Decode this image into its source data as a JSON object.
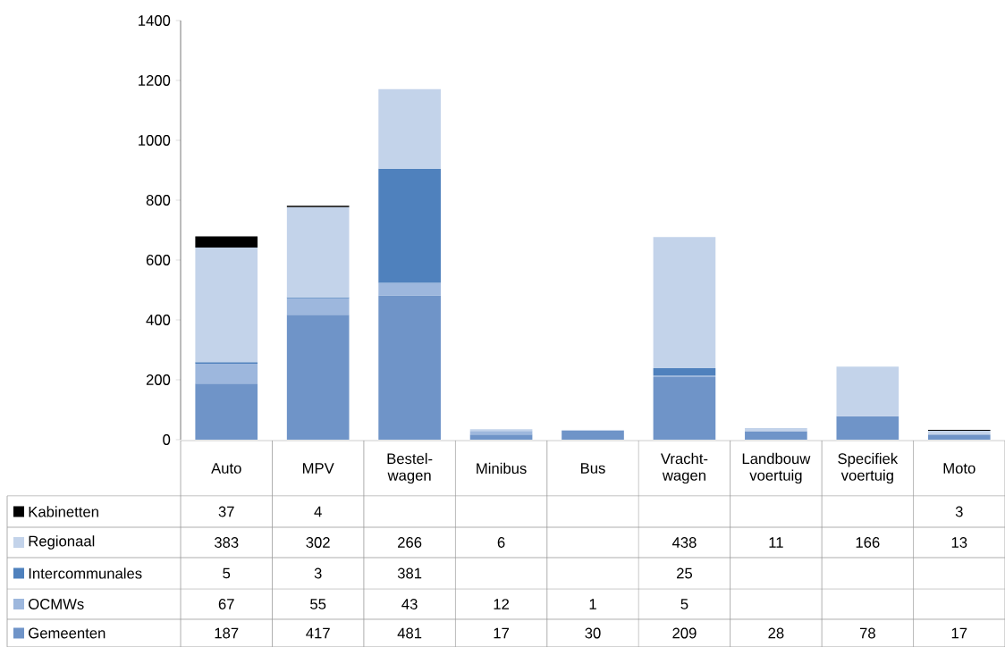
{
  "chart_data": {
    "type": "bar",
    "stacked": true,
    "data_labels": true,
    "legend": "bottom left",
    "categories": [
      "Auto",
      "MPV",
      "Bestel- wagen",
      "Minibus",
      "Bus",
      "Vracht- wagen",
      "Landbouw voertuig",
      "Specifiek voertuig",
      "Moto"
    ],
    "ylim": [
      0,
      1400
    ],
    "yticks": [
      0,
      200,
      400,
      600,
      800,
      1000,
      1200,
      1400
    ],
    "series": [
      {
        "name": "Gemeenten",
        "color": "#6f94c8",
        "values": [
          187,
          417,
          481,
          17,
          30,
          209,
          28,
          78,
          17
        ]
      },
      {
        "name": "OCMWs",
        "color": "#9db7dd",
        "values": [
          67,
          55,
          43,
          12,
          1,
          5,
          null,
          null,
          null
        ]
      },
      {
        "name": "Intercommunales",
        "color": "#4f81bd",
        "values": [
          5,
          3,
          381,
          null,
          null,
          25,
          null,
          null,
          null
        ]
      },
      {
        "name": "Regionaal",
        "color": "#c3d3ea",
        "values": [
          383,
          302,
          266,
          6,
          null,
          438,
          11,
          166,
          13
        ]
      },
      {
        "name": "Kabinetten",
        "color": "#000000",
        "values": [
          37,
          4,
          null,
          null,
          null,
          null,
          null,
          null,
          3
        ]
      }
    ]
  }
}
